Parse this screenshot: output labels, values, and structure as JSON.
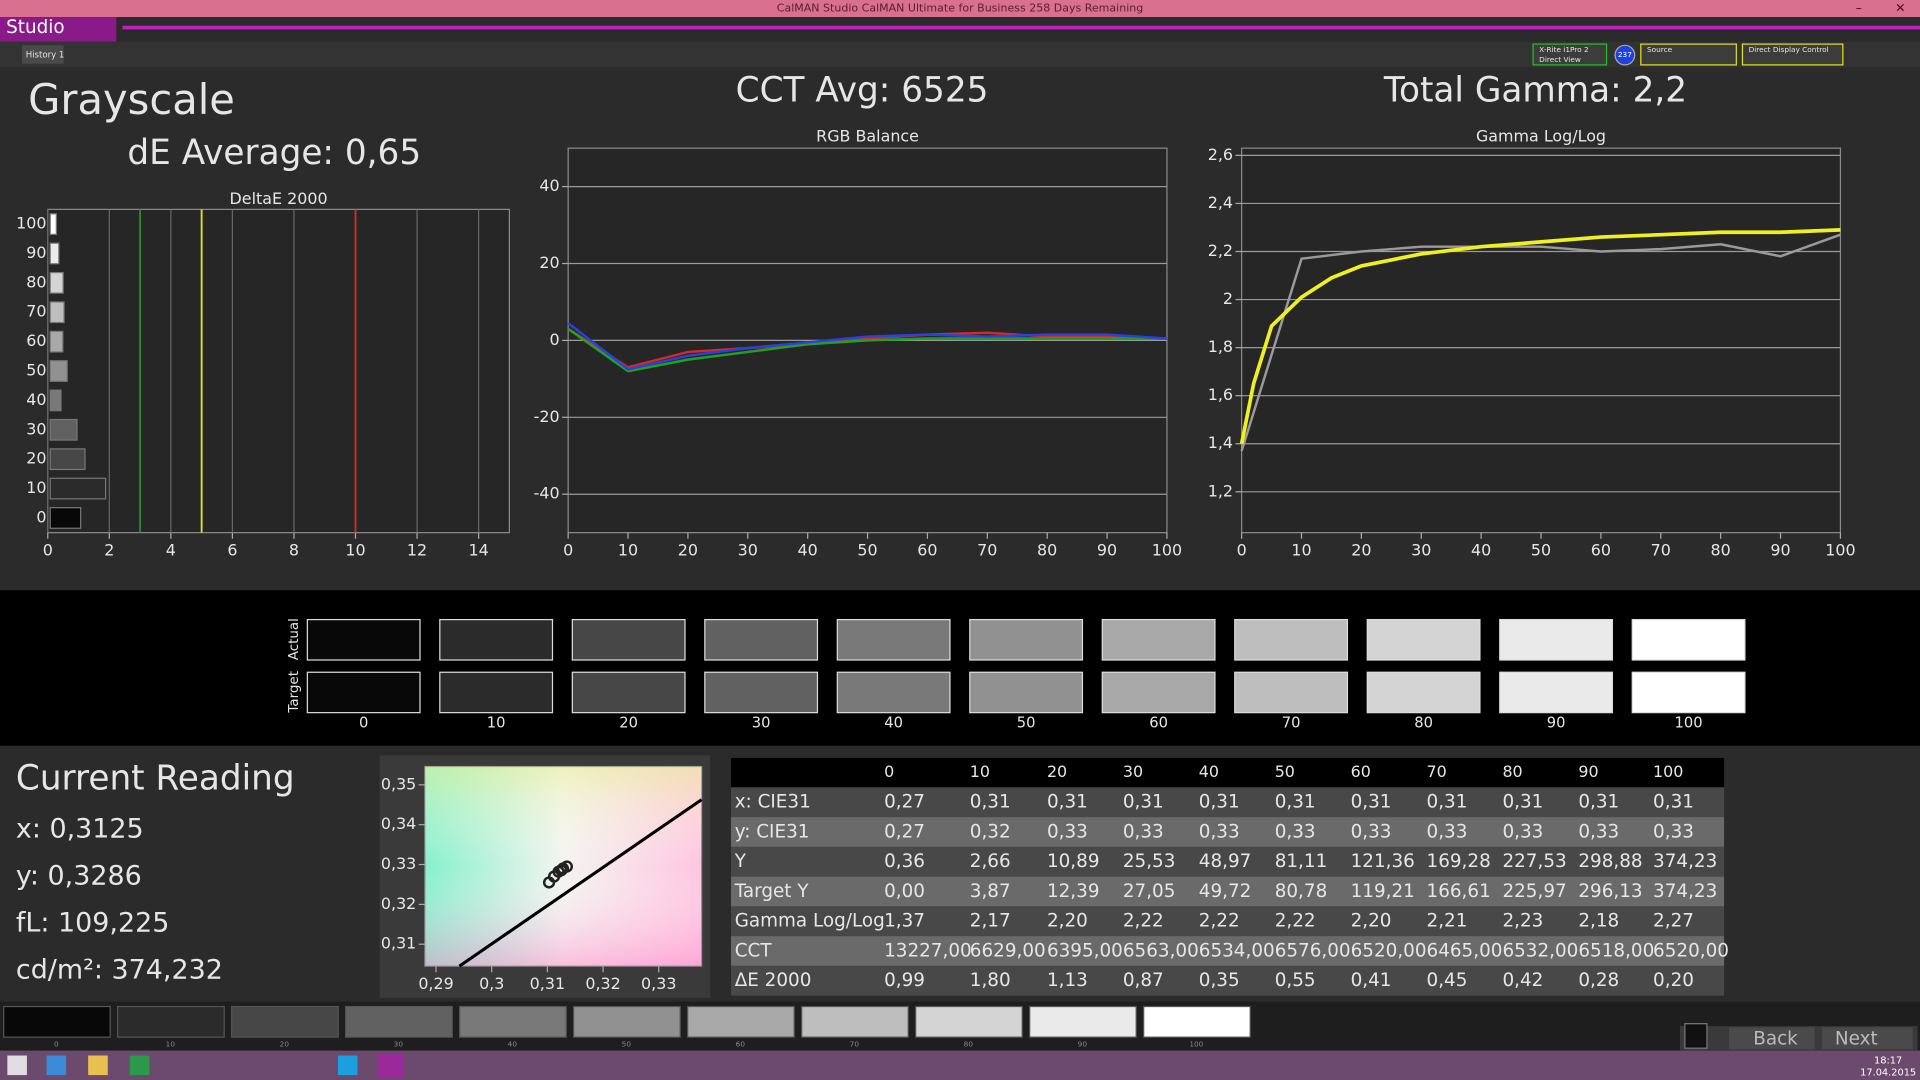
{
  "window": {
    "title": "CalMAN Studio CalMAN Ultimate for Business 258 Days Remaining",
    "app": "Studio",
    "tab": "History 1",
    "meter": "X-Rite i1Pro 2",
    "meter_mode": "Direct View",
    "badge": "237",
    "source": "Source",
    "display": "Direct Display Control"
  },
  "header": {
    "title": "Grayscale",
    "de_average": "dE Average: 0,65",
    "cct_avg": "CCT Avg: 6525",
    "total_gamma": "Total Gamma: 2,2"
  },
  "chart_data": [
    {
      "type": "bar",
      "title": "DeltaE 2000",
      "orientation": "horizontal",
      "categories": [
        0,
        10,
        20,
        30,
        40,
        50,
        60,
        70,
        80,
        90,
        100
      ],
      "values": [
        0.99,
        1.8,
        1.13,
        0.87,
        0.35,
        0.55,
        0.41,
        0.45,
        0.42,
        0.28,
        0.2
      ],
      "xlim": [
        0,
        15
      ],
      "xticks": [
        0,
        2,
        4,
        6,
        8,
        10,
        12,
        14
      ],
      "grid": "x",
      "reference_lines": [
        {
          "value": 3,
          "color": "#2e8b2e"
        },
        {
          "value": 5,
          "color": "#e6e020"
        },
        {
          "value": 10,
          "color": "#d42a2a"
        }
      ]
    },
    {
      "type": "line",
      "title": "RGB Balance",
      "x": [
        0,
        10,
        20,
        30,
        40,
        50,
        60,
        70,
        80,
        90,
        100
      ],
      "series": [
        {
          "color": "#d42a2a",
          "values": [
            3,
            -7,
            -3,
            -2,
            -1,
            0.5,
            1.5,
            2,
            1,
            1,
            0.5
          ]
        },
        {
          "color": "#22a022",
          "values": [
            3,
            -8,
            -5,
            -3,
            -1,
            0,
            0.5,
            0.5,
            0.5,
            0.5,
            0.5
          ]
        },
        {
          "color": "#2a40e0",
          "values": [
            4.5,
            -7.5,
            -4,
            -2,
            -0.5,
            1,
            1.5,
            1,
            1.5,
            1.5,
            0.5
          ]
        }
      ],
      "xlim": [
        0,
        100
      ],
      "xticks": [
        0,
        10,
        20,
        30,
        40,
        50,
        60,
        70,
        80,
        90,
        100
      ],
      "ylim": [
        -50,
        50
      ],
      "yticks": [
        -40,
        -20,
        0,
        20,
        40
      ],
      "grid": "y"
    },
    {
      "type": "line",
      "title": "Gamma Log/Log",
      "x": [
        0,
        10,
        20,
        30,
        40,
        50,
        60,
        70,
        80,
        90,
        100
      ],
      "series": [
        {
          "color": "#9a9a9a",
          "values": [
            1.37,
            2.17,
            2.2,
            2.22,
            2.22,
            2.22,
            2.2,
            2.21,
            2.23,
            2.18,
            2.27
          ]
        },
        {
          "color": "#f0f020",
          "x": [
            0,
            2,
            5,
            10,
            15,
            20,
            30,
            40,
            50,
            60,
            70,
            80,
            90,
            100
          ],
          "values": [
            1.4,
            1.65,
            1.89,
            2.01,
            2.09,
            2.14,
            2.19,
            2.22,
            2.24,
            2.26,
            2.27,
            2.28,
            2.28,
            2.29
          ]
        }
      ],
      "xlim": [
        0,
        100
      ],
      "xticks": [
        0,
        10,
        20,
        30,
        40,
        50,
        60,
        70,
        80,
        90,
        100
      ],
      "ylim": [
        1.03,
        2.63
      ],
      "yticks": [
        {
          "value": 1.2,
          "label": "1,2"
        },
        {
          "value": 1.4,
          "label": "1,4"
        },
        {
          "value": 1.6,
          "label": "1,6"
        },
        {
          "value": 1.8,
          "label": "1,8"
        },
        2,
        {
          "value": 2.2,
          "label": "2,2"
        },
        {
          "value": 2.4,
          "label": "2,4"
        },
        {
          "value": 2.6,
          "label": "2,6"
        }
      ],
      "grid": "y"
    },
    {
      "type": "scatter",
      "series": [
        {
          "color": "#000000",
          "mode": "line",
          "x": [
            0.2942,
            0.3377
          ],
          "values": [
            0.3045,
            0.3463
          ]
        },
        {
          "color": "#222222",
          "mode": "marker",
          "x": [
            0.3103,
            0.3112,
            0.312,
            0.3125,
            0.3135,
            0.3128
          ],
          "values": [
            0.3255,
            0.327,
            0.3282,
            0.3286,
            0.3295,
            0.329
          ]
        }
      ],
      "xlim": [
        0.288,
        0.3377
      ],
      "xticks": [
        {
          "value": 0.29,
          "label": "0,29"
        },
        {
          "value": 0.3,
          "label": "0,3"
        },
        {
          "value": 0.31,
          "label": "0,31"
        },
        {
          "value": 0.32,
          "label": "0,32"
        },
        {
          "value": 0.33,
          "label": "0,33"
        }
      ],
      "ylim": [
        0.3045,
        0.3546
      ],
      "yticks": [
        {
          "value": 0.31,
          "label": "0,31"
        },
        {
          "value": 0.32,
          "label": "0,32"
        },
        {
          "value": 0.33,
          "label": "0,33"
        },
        {
          "value": 0.34,
          "label": "0,34"
        },
        {
          "value": 0.35,
          "label": "0,35"
        }
      ]
    }
  ],
  "swatches": {
    "row_labels": [
      "Actual",
      "Target"
    ],
    "levels": [
      0,
      10,
      20,
      30,
      40,
      50,
      60,
      70,
      80,
      90,
      100
    ]
  },
  "current_reading": {
    "title": "Current Reading",
    "lines": [
      "x: 0,3125",
      "y: 0,3286",
      "fL: 109,225",
      "cd/m²: 374,232"
    ]
  },
  "table": {
    "columns": [
      0,
      10,
      20,
      30,
      40,
      50,
      60,
      70,
      80,
      90,
      100
    ],
    "rows": [
      [
        "x: CIE31",
        "0,27",
        "0,31",
        "0,31",
        "0,31",
        "0,31",
        "0,31",
        "0,31",
        "0,31",
        "0,31",
        "0,31",
        "0,31"
      ],
      [
        "y: CIE31",
        "0,27",
        "0,32",
        "0,33",
        "0,33",
        "0,33",
        "0,33",
        "0,33",
        "0,33",
        "0,33",
        "0,33",
        "0,33"
      ],
      [
        "Y",
        "0,36",
        "2,66",
        "10,89",
        "25,53",
        "48,97",
        "81,11",
        "121,36",
        "169,28",
        "227,53",
        "298,88",
        "374,23"
      ],
      [
        "Target Y",
        "0,00",
        "3,87",
        "12,39",
        "27,05",
        "49,72",
        "80,78",
        "119,21",
        "166,61",
        "225,97",
        "296,13",
        "374,23"
      ],
      [
        "Gamma Log/Log",
        "1,37",
        "2,17",
        "2,20",
        "2,22",
        "2,22",
        "2,22",
        "2,20",
        "2,21",
        "2,23",
        "2,18",
        "2,27"
      ],
      [
        "CCT",
        "13227,00",
        "6629,00",
        "6395,00",
        "6563,00",
        "6534,00",
        "6576,00",
        "6520,00",
        "6465,00",
        "6532,00",
        "6518,00",
        "6520,00"
      ],
      [
        "ΔE 2000",
        "0,99",
        "1,80",
        "1,13",
        "0,87",
        "0,35",
        "0,55",
        "0,41",
        "0,45",
        "0,42",
        "0,28",
        "0,20"
      ]
    ]
  },
  "footer": {
    "levels": [
      0,
      10,
      20,
      30,
      40,
      50,
      60,
      70,
      80,
      90,
      100
    ],
    "back": "Back",
    "next": "Next"
  },
  "taskbar": {
    "time": "18:17",
    "date": "17.04.2015"
  }
}
